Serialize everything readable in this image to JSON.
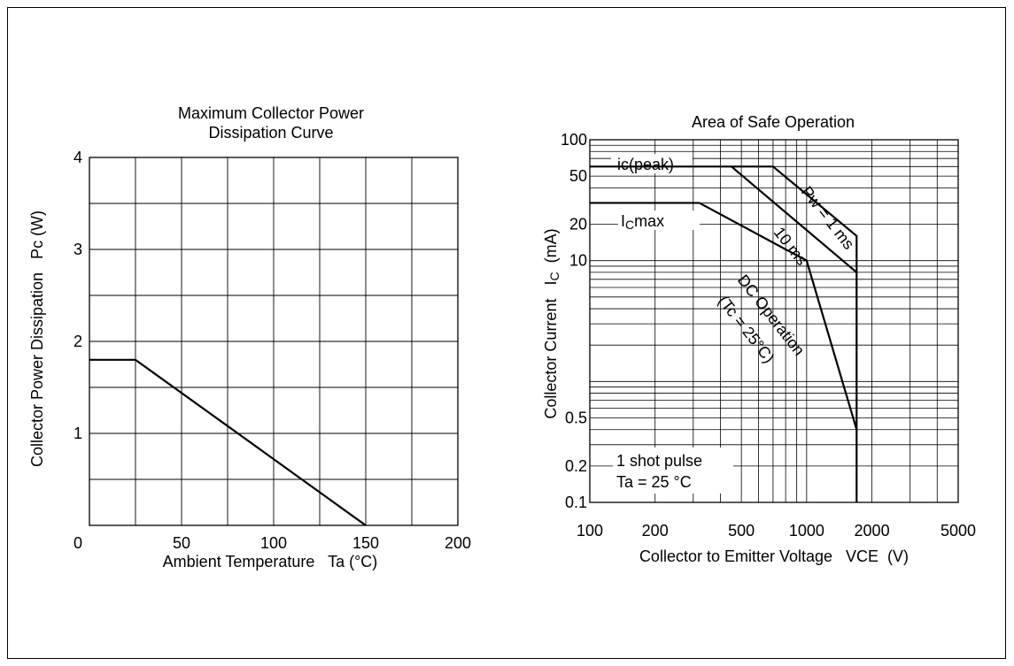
{
  "chart_data": [
    {
      "type": "line",
      "title": "Maximum Collector Power Dissipation Curve",
      "title_lines": [
        "Maximum Collector Power",
        "Dissipation Curve"
      ],
      "xlabel": "Ambient Temperature   Ta (°C)",
      "ylabel": "Collector Power Dissipation   Pc (W)",
      "xlim": [
        0,
        200
      ],
      "ylim": [
        0,
        4
      ],
      "x_ticks": [
        0,
        50,
        100,
        150,
        200
      ],
      "x_tick_labels": [
        "0",
        "50",
        "100",
        "150",
        "200"
      ],
      "y_ticks": [
        1,
        2,
        3,
        4
      ],
      "y_tick_labels": [
        "1",
        "2",
        "3",
        "4"
      ],
      "grid": true,
      "grid_x_step": 25,
      "grid_y_step": 0.5,
      "series": [
        {
          "x": [
            0,
            25,
            150
          ],
          "y": [
            1.8,
            1.8,
            0
          ]
        }
      ]
    },
    {
      "type": "line",
      "title": "Area of Safe Operation",
      "xlabel": "Collector to Emitter Voltage   VCE  (V)",
      "ylabel": "Collector Current   IC  (mA)",
      "ylabel_parts": [
        "Collector Current   I",
        "C",
        "  (mA)"
      ],
      "xscale": "log",
      "yscale": "log",
      "xlim": [
        100,
        5000
      ],
      "ylim": [
        0.1,
        100
      ],
      "x_ticks": [
        100,
        200,
        500,
        1000,
        2000,
        5000
      ],
      "x_tick_labels": [
        "100",
        "200",
        "500",
        "1000",
        "2000",
        "5000"
      ],
      "y_ticks": [
        0.1,
        0.2,
        0.5,
        10,
        20,
        50,
        100
      ],
      "y_tick_labels": [
        "0.1",
        "0.2",
        "0.5",
        "10",
        "20",
        "50",
        "100"
      ],
      "grid": true,
      "series": [
        {
          "x": [
            100,
            700,
            1700,
            1700
          ],
          "y": [
            60,
            60,
            16,
            0.1
          ]
        },
        {
          "x": [
            450,
            1700
          ],
          "y": [
            60,
            8
          ]
        },
        {
          "x": [
            100,
            320,
            1000,
            1700
          ],
          "y": [
            30,
            30,
            10,
            0.4
          ]
        }
      ],
      "annotations": {
        "ic_peak": "ic(peak)",
        "ic_max_i": "I",
        "ic_max_sub": "C",
        "ic_max_rest": "max",
        "pw_1ms": "Pw = 1 ms",
        "ms10": "10 ms",
        "dc_line1": "DC Operation",
        "dc_line2": "(Tc = 25°C)",
        "note_line1": "1 shot pulse",
        "note_line2": "Ta = 25 °C"
      }
    }
  ]
}
